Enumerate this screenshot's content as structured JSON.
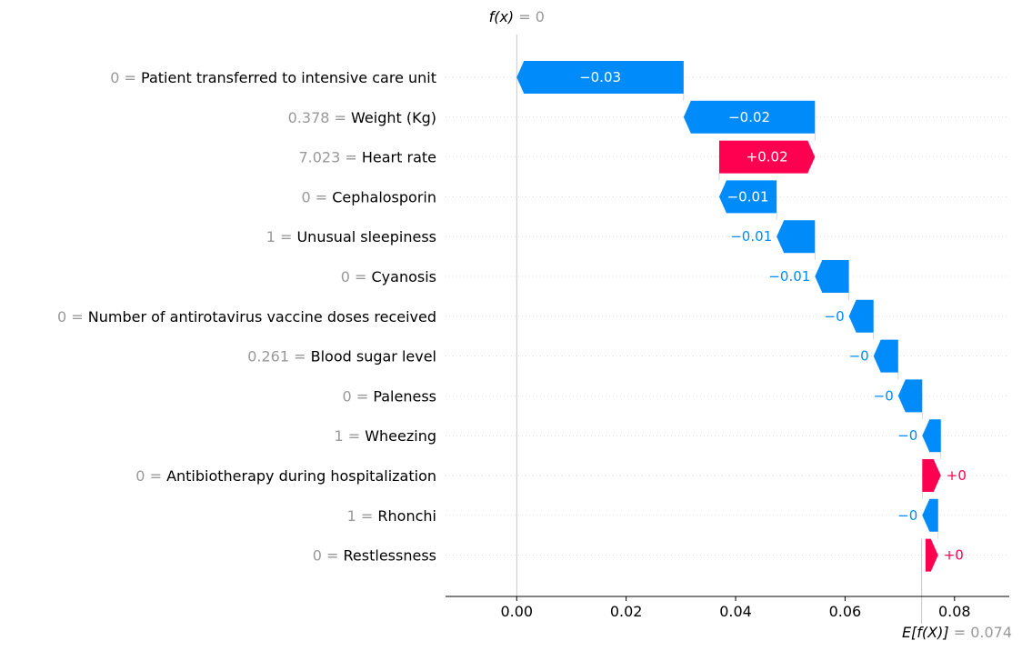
{
  "chart_data": {
    "type": "waterfall",
    "fx_label": "f(x)",
    "fx_value": "0",
    "ex_label": "E[f(X)]",
    "ex_value": "0.074",
    "fx": 0.0,
    "base_value": 0.074,
    "xlim": [
      -0.013,
      0.09
    ],
    "xticks": [
      0.0,
      0.02,
      0.04,
      0.06,
      0.08
    ],
    "xtick_labels": [
      "0.00",
      "0.02",
      "0.04",
      "0.06",
      "0.08"
    ],
    "colors": {
      "negative": "#008bfb",
      "positive": "#ff0051",
      "value_gray": "#999999"
    },
    "features": [
      {
        "value": "0",
        "name": "Patient transferred to intensive care unit",
        "contribution": -0.0305,
        "label": "−0.03"
      },
      {
        "value": "0.378",
        "name": "Weight (Kg)",
        "contribution": -0.024,
        "label": "−0.02"
      },
      {
        "value": "7.023",
        "name": "Heart rate",
        "contribution": 0.0175,
        "label": "+0.02"
      },
      {
        "value": "0",
        "name": "Cephalosporin",
        "contribution": -0.0105,
        "label": "−0.01"
      },
      {
        "value": "1",
        "name": "Unusual sleepiness",
        "contribution": -0.007,
        "label": "−0.01"
      },
      {
        "value": "0",
        "name": "Cyanosis",
        "contribution": -0.0062,
        "label": "−0.01"
      },
      {
        "value": "0",
        "name": "Number of antirotavirus vaccine doses received",
        "contribution": -0.0045,
        "label": "−0"
      },
      {
        "value": "0.261",
        "name": "Blood sugar level",
        "contribution": -0.0045,
        "label": "−0"
      },
      {
        "value": "0",
        "name": "Paleness",
        "contribution": -0.0044,
        "label": "−0"
      },
      {
        "value": "1",
        "name": "Wheezing",
        "contribution": -0.0034,
        "label": "−0"
      },
      {
        "value": "0",
        "name": "Antibiotherapy during hospitalization",
        "contribution": 0.0034,
        "label": "+0"
      },
      {
        "value": "1",
        "name": "Rhonchi",
        "contribution": -0.0029,
        "label": "−0"
      },
      {
        "value": "0",
        "name": "Restlessness",
        "contribution": 0.0023,
        "label": "+0"
      }
    ]
  }
}
